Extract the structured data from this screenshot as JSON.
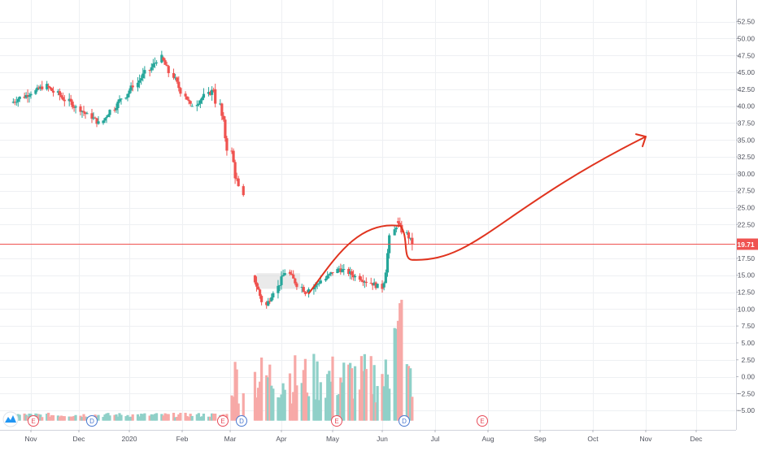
{
  "chart_data": {
    "type": "candlestick",
    "colors": {
      "up": "#26a69a",
      "down": "#ef5350",
      "up_volume": "#8fd0c8",
      "down_volume": "#f7a9a7",
      "grid": "#eef0f3",
      "axis_text": "#50535e",
      "price_line": "#ef5350",
      "arrow": "#e0341f",
      "range_box": "#d9d9d9"
    },
    "price_axis": {
      "ticks": [
        "52.50",
        "50.00",
        "47.50",
        "45.00",
        "42.50",
        "40.00",
        "37.50",
        "35.00",
        "32.50",
        "30.00",
        "27.50",
        "25.00",
        "22.50",
        "17.50",
        "15.00",
        "12.50",
        "10.00",
        "7.50",
        "5.00",
        "2.50",
        "0.00",
        "−2.50",
        "−5.00"
      ],
      "range": [
        -6.9,
        54.5
      ]
    },
    "time_axis": {
      "labels": [
        "Nov",
        "Dec",
        "2020",
        "Feb",
        "Mar",
        "Apr",
        "May",
        "Jun",
        "Jul",
        "Aug",
        "Sep",
        "Oct",
        "Nov",
        "Dec"
      ]
    },
    "last_price": "19.71",
    "last_price_value": 19.71,
    "annotations": {
      "drawn_path": "curved arrow from mid-April low up to the early-June peak, back down to the current price, then rising toward a target near 35.5 in November",
      "shaded_range": {
        "from": "Mar",
        "to": "Apr",
        "low": 13.0,
        "high": 15.3
      }
    },
    "events": [
      {
        "type": "E",
        "month": "Nov"
      },
      {
        "type": "D",
        "month": "Dec"
      },
      {
        "type": "E",
        "month": "Mar"
      },
      {
        "type": "D",
        "month": "Mar"
      },
      {
        "type": "E",
        "month": "May"
      },
      {
        "type": "D",
        "month": "Jun"
      },
      {
        "type": "E",
        "month": "Aug"
      }
    ],
    "candles_segments": [
      {
        "from_date": "2019-10-21",
        "to_date": "2019-11-12",
        "from": 40.5,
        "to": 43.0
      },
      {
        "from_date": "2019-11-12",
        "to_date": "2019-12-16",
        "from": 43.0,
        "to": 37.5
      },
      {
        "from_date": "2019-12-16",
        "to_date": "2020-01-21",
        "from": 37.5,
        "to": 47.2
      },
      {
        "from_date": "2020-01-21",
        "to_date": "2020-02-07",
        "from": 47.2,
        "to": 40.0
      },
      {
        "from_date": "2020-02-07",
        "to_date": "2020-02-21",
        "from": 40.0,
        "to": 42.5
      },
      {
        "from_date": "2020-02-21",
        "to_date": "2020-03-10",
        "from": 42.5,
        "to": 26.0
      },
      {
        "from_date": "2020-03-16",
        "to_date": "2020-03-24",
        "from": 15.0,
        "to": 10.5
      },
      {
        "from_date": "2020-03-24",
        "to_date": "2020-04-06",
        "from": 10.5,
        "to": 15.5
      },
      {
        "from_date": "2020-04-06",
        "to_date": "2020-04-16",
        "from": 15.5,
        "to": 12.5
      },
      {
        "from_date": "2020-04-16",
        "to_date": "2020-05-06",
        "from": 12.5,
        "to": 16.0
      },
      {
        "from_date": "2020-05-06",
        "to_date": "2020-06-02",
        "from": 16.0,
        "to": 13.2
      },
      {
        "from_date": "2020-06-02",
        "to_date": "2020-06-10",
        "from": 13.2,
        "to": 23.0
      },
      {
        "from_date": "2020-06-10",
        "to_date": "2020-06-19",
        "from": 23.0,
        "to": 19.7
      }
    ],
    "volume_base": -6.5
  }
}
